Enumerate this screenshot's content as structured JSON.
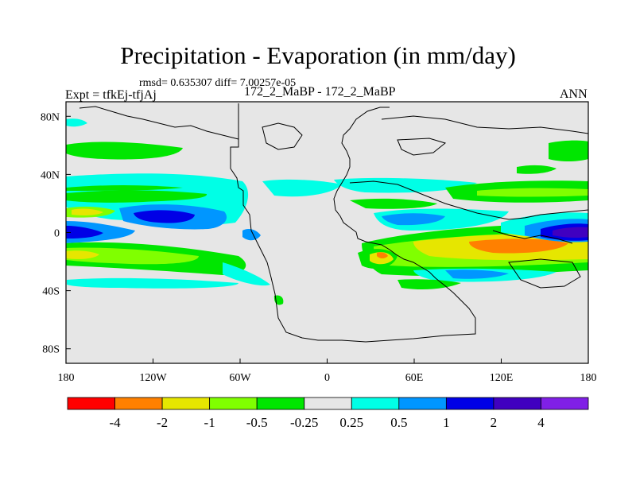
{
  "header": {
    "title": "Precipitation - Evaporation (in mm/day)",
    "stats": "rmsd= 0.635307 diff= 7.00257e-05",
    "experiment": "Expt = tfkEj-tfjAj",
    "center_label": "172_2_MaBP - 172_2_MaBP",
    "season": "ANN"
  },
  "axes": {
    "x_ticks": [
      {
        "value": -180,
        "label": "180"
      },
      {
        "value": -120,
        "label": "120W"
      },
      {
        "value": -60,
        "label": "60W"
      },
      {
        "value": 0,
        "label": "0"
      },
      {
        "value": 60,
        "label": "60E"
      },
      {
        "value": 120,
        "label": "120E"
      },
      {
        "value": 180,
        "label": "180"
      }
    ],
    "y_ticks": [
      {
        "value": 80,
        "label": "80N"
      },
      {
        "value": 40,
        "label": "40N"
      },
      {
        "value": 0,
        "label": "0"
      },
      {
        "value": -40,
        "label": "40S"
      },
      {
        "value": -80,
        "label": "80S"
      }
    ],
    "lon_range": [
      -180,
      180
    ],
    "lat_range": [
      -90,
      90
    ]
  },
  "colorbar": {
    "colors": [
      "#ff0000",
      "#ff8000",
      "#e6e600",
      "#80ff00",
      "#00e600",
      "#e6e6e6",
      "#00ffe6",
      "#0096ff",
      "#0000e6",
      "#4000c0",
      "#8020e6"
    ],
    "labels": [
      "-4",
      "-2",
      "-1",
      "-0.5",
      "-0.25",
      "0.25",
      "0.5",
      "1",
      "2",
      "4"
    ]
  },
  "map": {
    "background_color": "#e6e6e6",
    "coastline_color": "#000000"
  }
}
